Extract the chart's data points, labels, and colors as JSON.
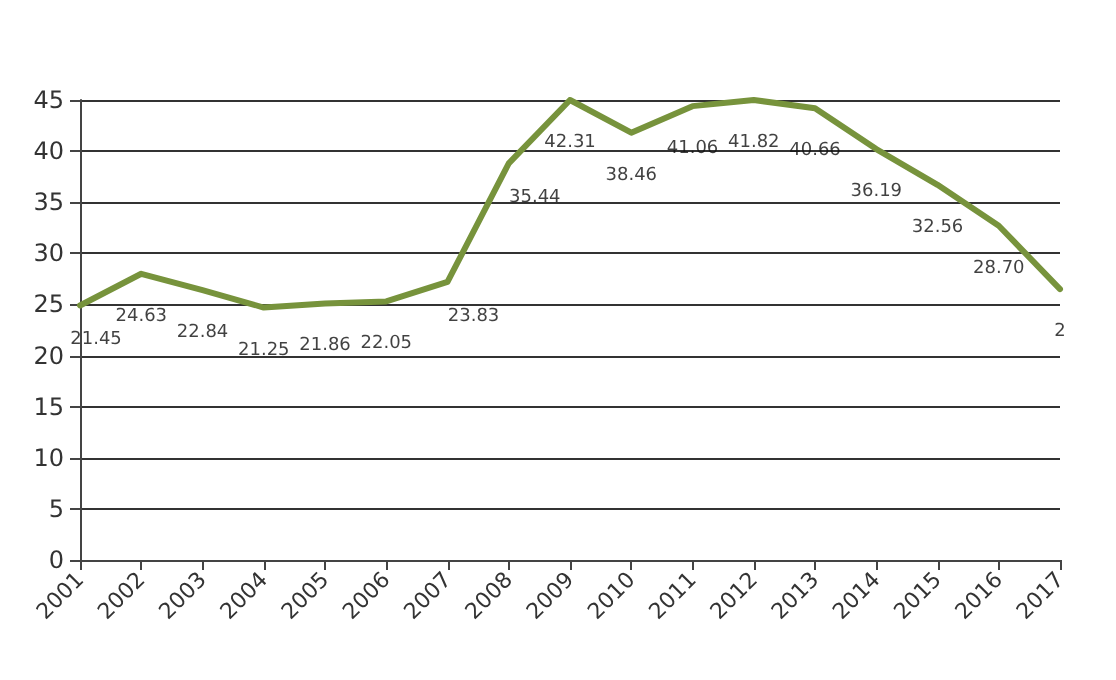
{
  "chart_data": {
    "type": "line",
    "categories": [
      "2001",
      "2002",
      "2003",
      "2004",
      "2005",
      "2006",
      "2007",
      "2008",
      "2009",
      "2010",
      "2011",
      "2012",
      "2013",
      "2014",
      "2015",
      "2016",
      "2017"
    ],
    "series": [
      {
        "color": "#77933c",
        "values": [
          24.9,
          28.0,
          26.4,
          24.7,
          25.1,
          25.3,
          27.2,
          38.8,
          45,
          41.8,
          44.4,
          45,
          44.2,
          40.2,
          36.7,
          32.7,
          26.5
        ]
      }
    ],
    "annotations": [
      {
        "text": "21.45",
        "x": "2001",
        "y": 24.9
      },
      {
        "text": "24.63",
        "x": "2002",
        "y": 28.0
      },
      {
        "text": "22.84",
        "x": "2003",
        "y": 26.4
      },
      {
        "text": "21.25",
        "x": "2004",
        "y": 24.7
      },
      {
        "text": "21.86",
        "x": "2005",
        "y": 25.1
      },
      {
        "text": "22.05",
        "x": "2006",
        "y": 25.3
      },
      {
        "text": "23.83",
        "x": "2007",
        "y": 27.2
      },
      {
        "text": "35.44",
        "x": "2008",
        "y": 38.8
      },
      {
        "text": "42.31",
        "x": "2009",
        "y": 45
      },
      {
        "text": "38.46",
        "x": "2010",
        "y": 41.8
      },
      {
        "text": "41.06",
        "x": "2011",
        "y": 44.4
      },
      {
        "text": "41.82",
        "x": "2012",
        "y": 45
      },
      {
        "text": "40.66",
        "x": "2013",
        "y": 44.2
      },
      {
        "text": "36.19",
        "x": "2014",
        "y": 40.2
      },
      {
        "text": "32.56",
        "x": "2015",
        "y": 36.7
      },
      {
        "text": "28.70",
        "x": "2016",
        "y": 32.7
      },
      {
        "text": "2",
        "x": "2017",
        "y": 26.5
      }
    ],
    "ylim": [
      0,
      45
    ],
    "yticks": [
      0,
      5,
      10,
      15,
      20,
      25,
      30,
      35,
      40,
      45
    ],
    "grid": "y",
    "marker": "none",
    "line_style": "solid"
  }
}
